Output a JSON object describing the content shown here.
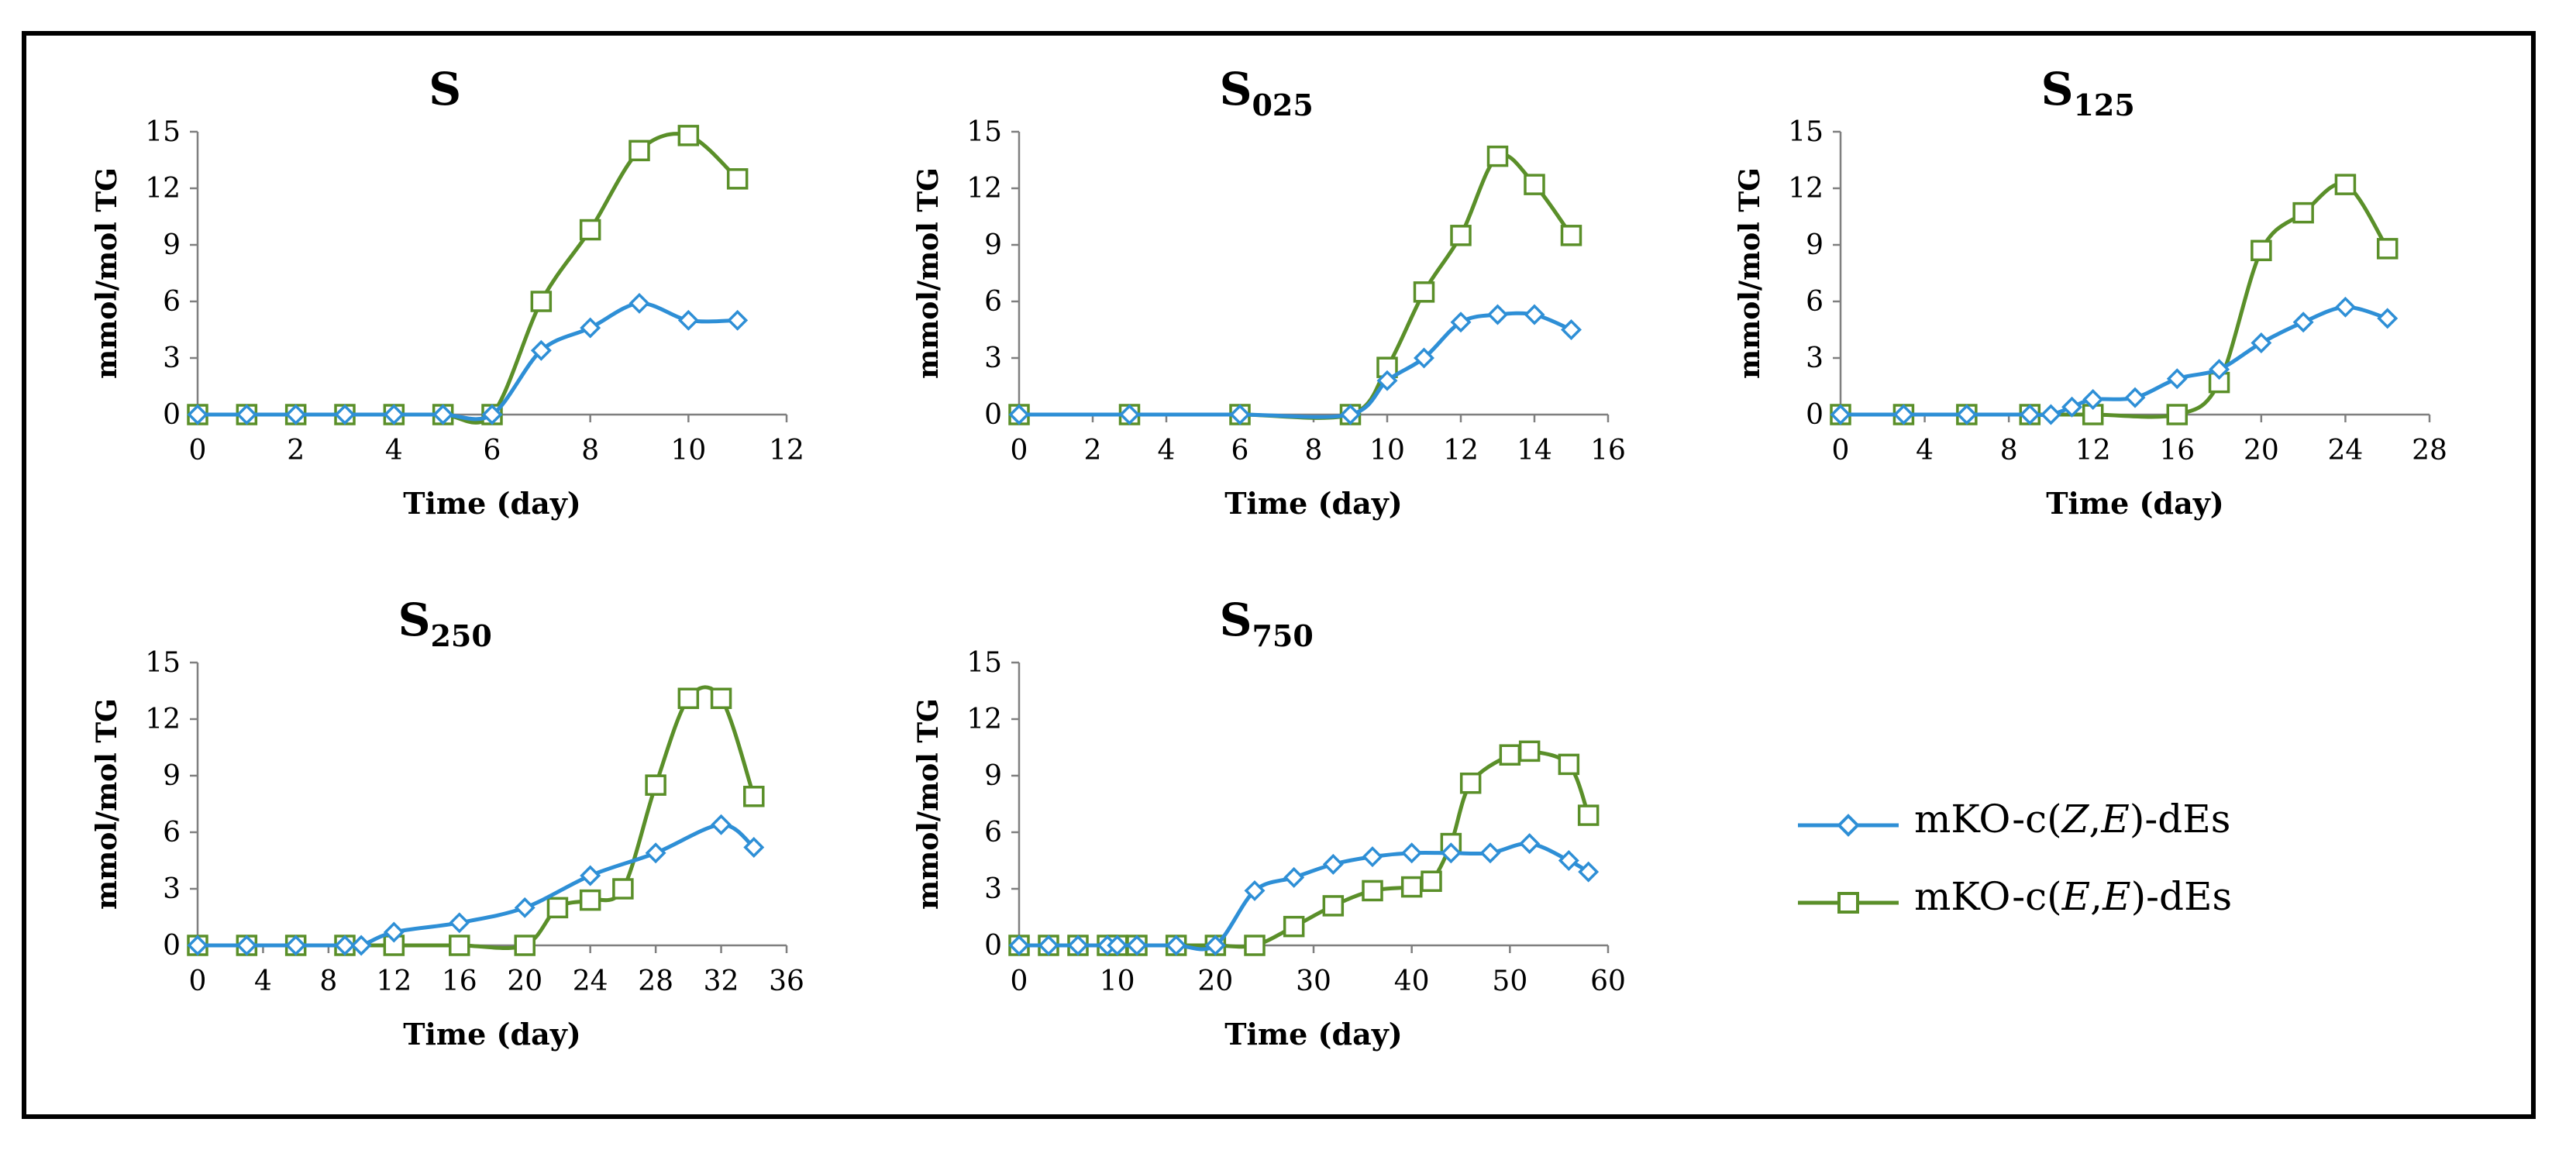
{
  "colors": {
    "series_ze": "#2E8FD6",
    "series_ee": "#5A8F29"
  },
  "legend": [
    {
      "prefix": "mKO-c(",
      "a": "Z",
      "sep": ",",
      "b": "E",
      "suffix": ")-dEs",
      "marker": "diamond"
    },
    {
      "prefix": "mKO-c(",
      "a": "E",
      "sep": ",",
      "b": "E",
      "suffix": ")-dEs",
      "marker": "square"
    }
  ],
  "chart_data": [
    {
      "id": "S",
      "type": "line",
      "title": "S",
      "title_sub": "",
      "xlabel": "Time (day)",
      "ylabel": "mmol/mol TG",
      "xlim": [
        0,
        12
      ],
      "xticks": [
        0,
        2,
        4,
        6,
        8,
        10,
        12
      ],
      "ylim": [
        0,
        15
      ],
      "yticks": [
        0,
        3,
        6,
        9,
        12,
        15
      ],
      "series": [
        {
          "name": "mKO-c(Z,E)-dEs",
          "marker": "diamond",
          "x": [
            0,
            1,
            2,
            3,
            4,
            5,
            6,
            7,
            8,
            9,
            10,
            11
          ],
          "y": [
            0,
            0,
            0,
            0,
            0,
            0,
            0,
            3.4,
            4.6,
            5.9,
            5.0,
            5.0
          ]
        },
        {
          "name": "mKO-c(E,E)-dEs",
          "marker": "square",
          "x": [
            0,
            1,
            2,
            3,
            4,
            5,
            6,
            7,
            8,
            9,
            10,
            11
          ],
          "y": [
            0,
            0,
            0,
            0,
            0,
            0,
            0,
            6.0,
            9.8,
            14.0,
            14.8,
            12.5
          ]
        }
      ]
    },
    {
      "id": "S025",
      "type": "line",
      "title": "S",
      "title_sub": "025",
      "xlabel": "Time (day)",
      "ylabel": "mmol/mol TG",
      "xlim": [
        0,
        16
      ],
      "xticks": [
        0,
        2,
        4,
        6,
        8,
        10,
        12,
        14,
        16
      ],
      "ylim": [
        0,
        15
      ],
      "yticks": [
        0,
        3,
        6,
        9,
        12,
        15
      ],
      "series": [
        {
          "name": "mKO-c(Z,E)-dEs",
          "marker": "diamond",
          "x": [
            0,
            3,
            6,
            9,
            10,
            11,
            12,
            13,
            14,
            15
          ],
          "y": [
            0,
            0,
            0,
            0,
            1.8,
            3.0,
            4.9,
            5.3,
            5.3,
            4.5
          ]
        },
        {
          "name": "mKO-c(E,E)-dEs",
          "marker": "square",
          "x": [
            0,
            3,
            6,
            9,
            10,
            11,
            12,
            13,
            14,
            15
          ],
          "y": [
            0,
            0,
            0,
            0,
            2.5,
            6.5,
            9.5,
            13.7,
            12.2,
            9.5
          ]
        }
      ]
    },
    {
      "id": "S125",
      "type": "line",
      "title": "S",
      "title_sub": "125",
      "xlabel": "Time (day)",
      "ylabel": "mmol/mol TG",
      "xlim": [
        0,
        28
      ],
      "xticks": [
        0,
        4,
        8,
        12,
        16,
        20,
        24,
        28
      ],
      "ylim": [
        0,
        15
      ],
      "yticks": [
        0,
        3,
        6,
        9,
        12,
        15
      ],
      "series": [
        {
          "name": "mKO-c(Z,E)-dEs",
          "marker": "diamond",
          "x": [
            0,
            3,
            6,
            9,
            10,
            11,
            12,
            14,
            16,
            18,
            20,
            22,
            24,
            26
          ],
          "y": [
            0,
            0,
            0,
            0,
            0,
            0.4,
            0.8,
            0.9,
            1.9,
            2.4,
            3.8,
            4.9,
            5.7,
            5.1
          ]
        },
        {
          "name": "mKO-c(E,E)-dEs",
          "marker": "square",
          "x": [
            0,
            3,
            6,
            9,
            12,
            16,
            18,
            20,
            22,
            24,
            26
          ],
          "y": [
            0,
            0,
            0,
            0,
            0,
            0,
            1.7,
            8.7,
            10.7,
            12.2,
            8.8
          ]
        }
      ]
    },
    {
      "id": "S250",
      "type": "line",
      "title": "S",
      "title_sub": "250",
      "xlabel": "Time (day)",
      "ylabel": "mmol/mol TG",
      "xlim": [
        0,
        36
      ],
      "xticks": [
        0,
        4,
        8,
        12,
        16,
        20,
        24,
        28,
        32,
        36
      ],
      "ylim": [
        0,
        15
      ],
      "yticks": [
        0,
        3,
        6,
        9,
        12,
        15
      ],
      "series": [
        {
          "name": "mKO-c(Z,E)-dEs",
          "marker": "diamond",
          "x": [
            0,
            3,
            6,
            9,
            10,
            12,
            16,
            20,
            24,
            28,
            32,
            34
          ],
          "y": [
            0,
            0,
            0,
            0,
            0,
            0.7,
            1.2,
            2.0,
            3.7,
            4.9,
            6.4,
            5.2
          ]
        },
        {
          "name": "mKO-c(E,E)-dEs",
          "marker": "square",
          "x": [
            0,
            3,
            6,
            9,
            12,
            16,
            20,
            22,
            24,
            26,
            28,
            30,
            32,
            34
          ],
          "y": [
            0,
            0,
            0,
            0,
            0,
            0,
            0,
            2.0,
            2.4,
            3.0,
            8.5,
            13.1,
            13.1,
            7.9
          ]
        }
      ]
    },
    {
      "id": "S750",
      "type": "line",
      "title": "S",
      "title_sub": "750",
      "xlabel": "Time (day)",
      "ylabel": "mmol/mol TG",
      "xlim": [
        0,
        60
      ],
      "xticks": [
        0,
        10,
        20,
        30,
        40,
        50,
        60
      ],
      "ylim": [
        0,
        15
      ],
      "yticks": [
        0,
        3,
        6,
        9,
        12,
        15
      ],
      "series": [
        {
          "name": "mKO-c(Z,E)-dEs",
          "marker": "diamond",
          "x": [
            0,
            3,
            6,
            9,
            10,
            12,
            16,
            20,
            24,
            28,
            32,
            36,
            40,
            44,
            48,
            52,
            56,
            58
          ],
          "y": [
            0,
            0,
            0,
            0,
            0,
            0,
            0,
            0,
            2.9,
            3.6,
            4.3,
            4.7,
            4.9,
            4.9,
            4.9,
            5.4,
            4.5,
            3.9
          ]
        },
        {
          "name": "mKO-c(E,E)-dEs",
          "marker": "square",
          "x": [
            0,
            3,
            6,
            9,
            10,
            12,
            16,
            20,
            24,
            28,
            32,
            36,
            40,
            42,
            44,
            46,
            50,
            52,
            56,
            58
          ],
          "y": [
            0,
            0,
            0,
            0,
            0,
            0,
            0,
            0,
            0,
            1.0,
            2.1,
            2.9,
            3.1,
            3.4,
            5.4,
            8.6,
            10.1,
            10.3,
            9.6,
            6.9
          ]
        }
      ]
    }
  ]
}
